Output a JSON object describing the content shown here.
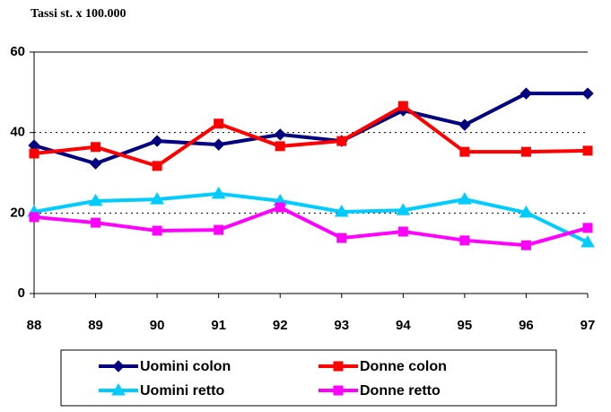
{
  "chart_data": {
    "type": "line",
    "title": "Tassi st. x 100.000",
    "categories": [
      "88",
      "89",
      "90",
      "91",
      "92",
      "93",
      "94",
      "95",
      "96",
      "97"
    ],
    "series": [
      {
        "name": "Uomini colon",
        "color": "#000080",
        "marker": "diamond",
        "values": [
          36.8,
          32.3,
          37.9,
          37.0,
          39.5,
          37.9,
          45.5,
          41.9,
          49.7,
          49.7
        ]
      },
      {
        "name": "Donne colon",
        "color": "#ff0000",
        "marker": "square",
        "values": [
          34.8,
          36.4,
          31.7,
          42.2,
          36.6,
          37.9,
          46.6,
          35.2,
          35.2,
          35.5
        ]
      },
      {
        "name": "Uomini retto",
        "color": "#00ccff",
        "marker": "triangle",
        "values": [
          20.3,
          23.0,
          23.4,
          24.8,
          23.0,
          20.3,
          20.7,
          23.4,
          20.1,
          12.7
        ]
      },
      {
        "name": "Donne retto",
        "color": "#ff00ff",
        "marker": "square",
        "values": [
          19.0,
          17.6,
          15.6,
          15.8,
          21.4,
          13.8,
          15.4,
          13.2,
          12.0,
          16.3
        ]
      }
    ],
    "ylim": [
      0,
      60
    ],
    "yticks": [
      0,
      20,
      40,
      60
    ],
    "grid": true
  }
}
